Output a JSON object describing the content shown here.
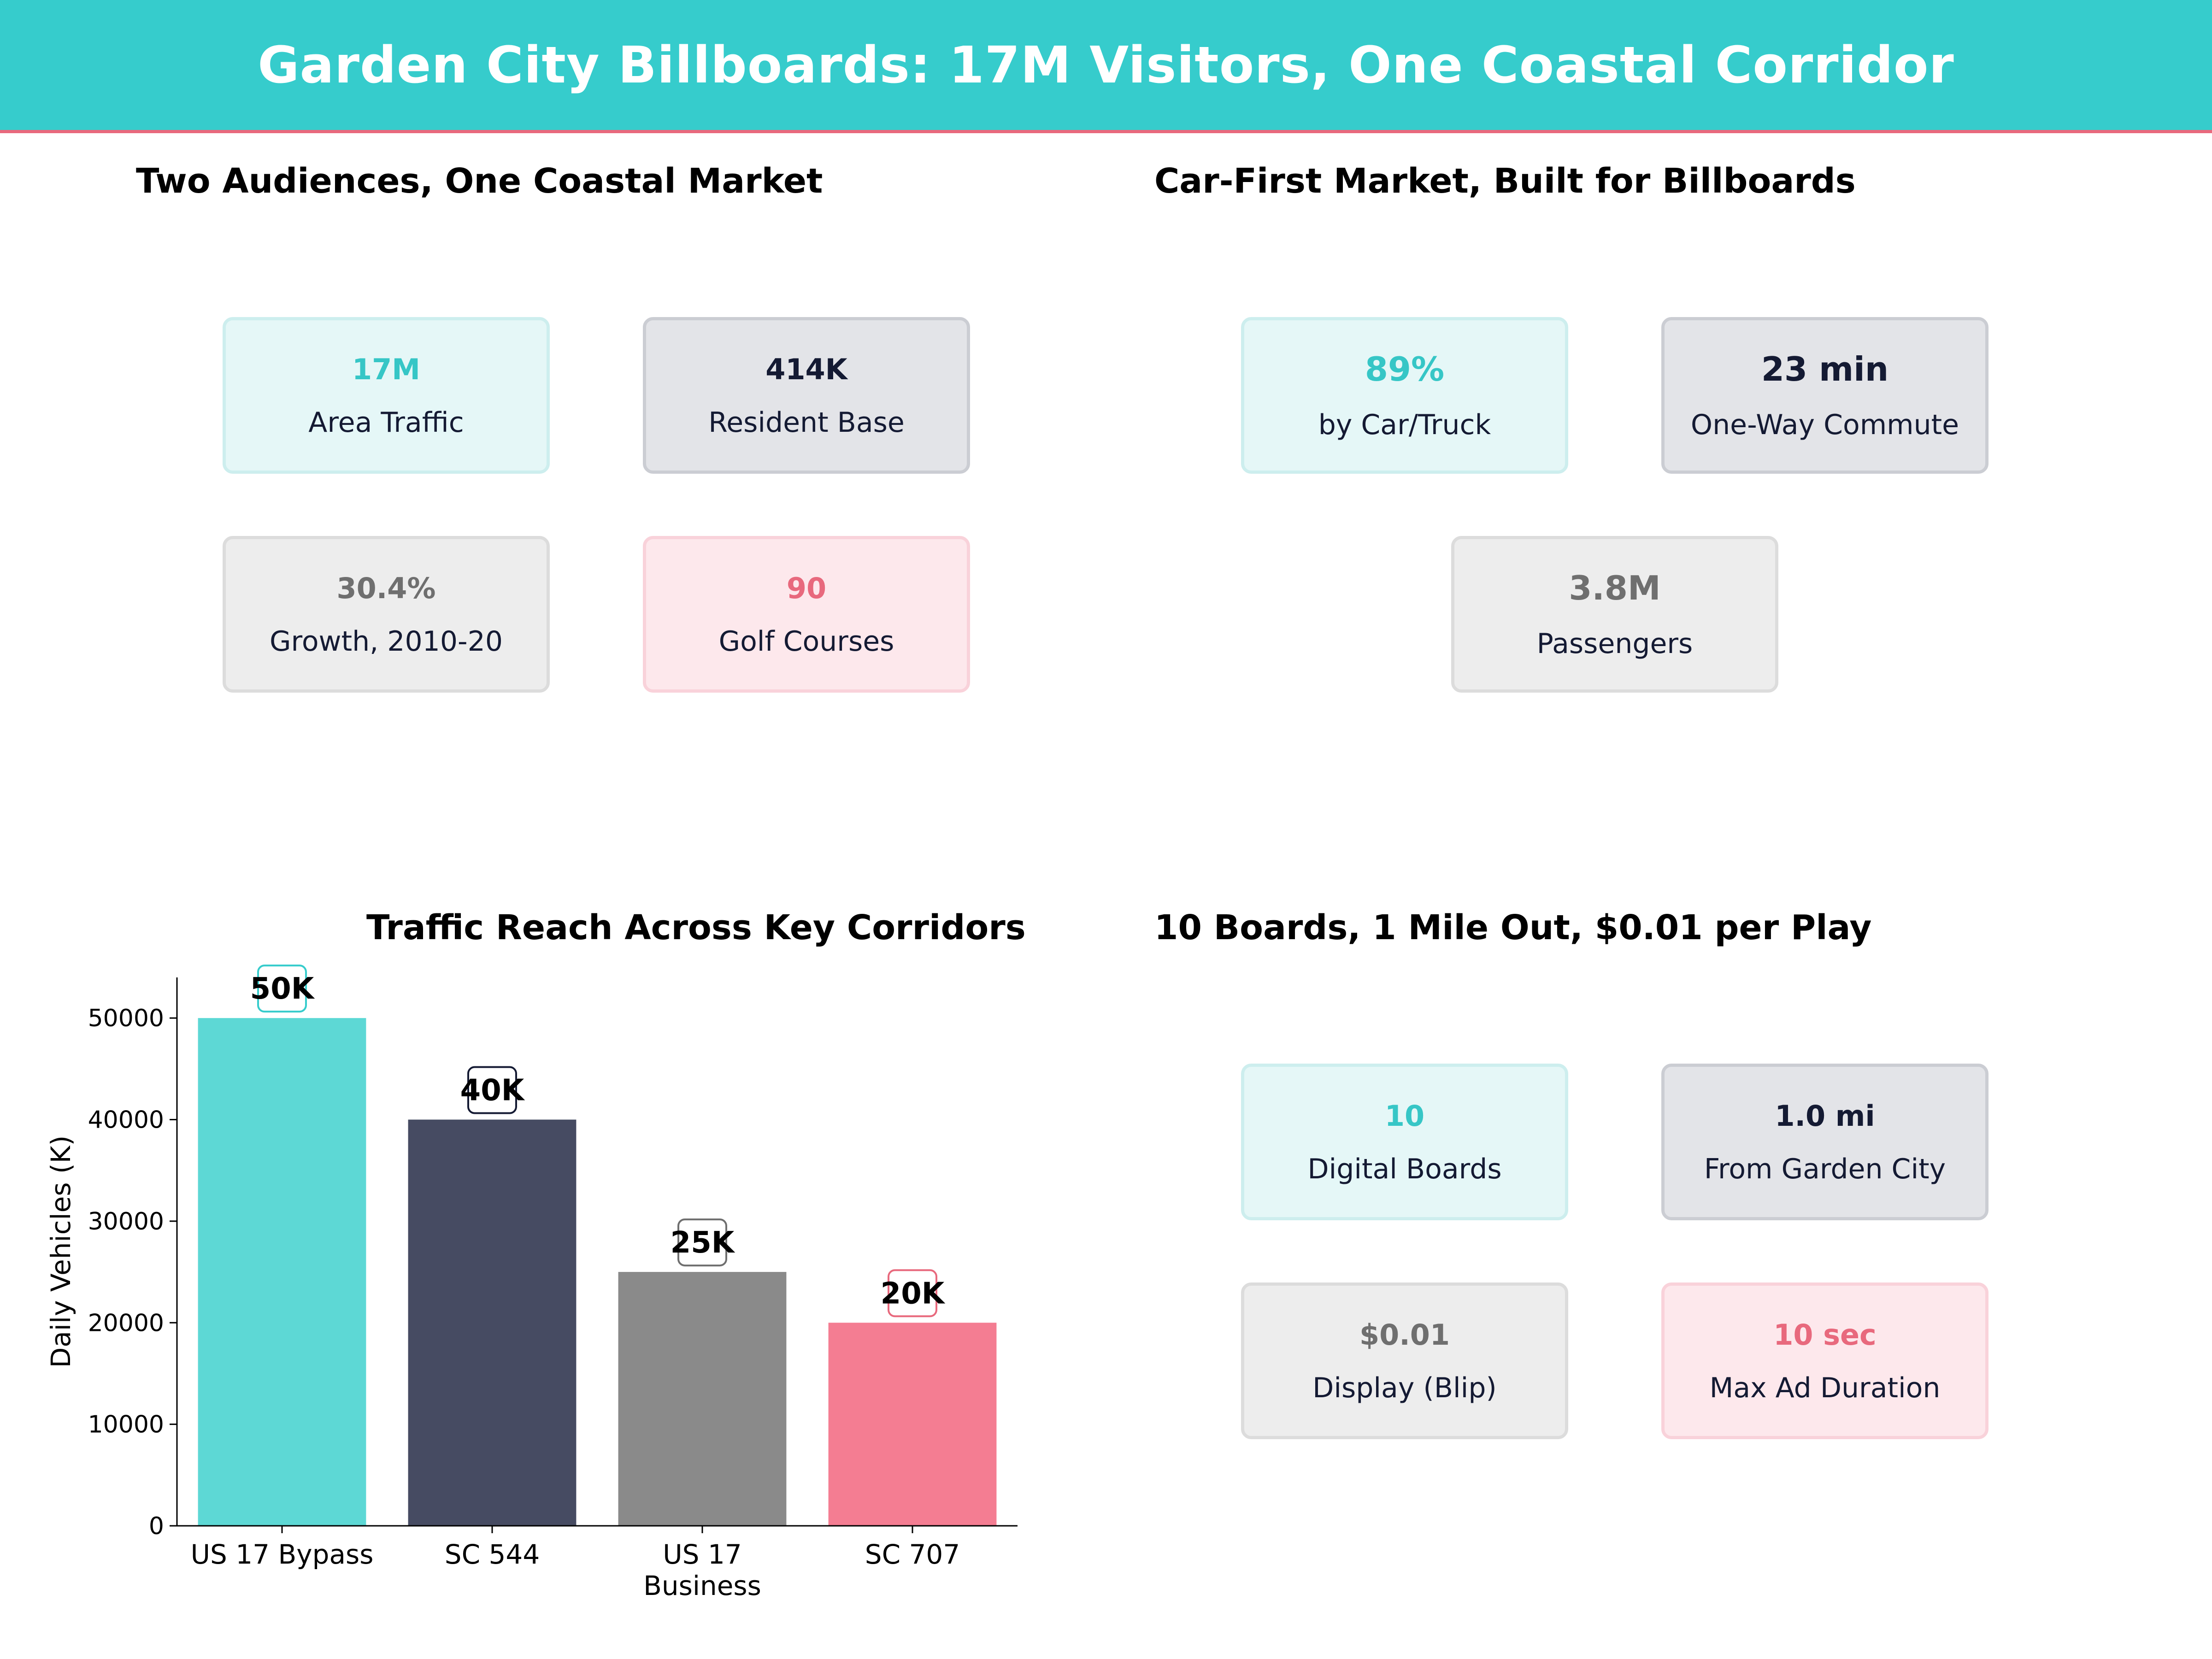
{
  "header": {
    "title": "Garden City Billboards: 17M Visitors, One Coastal Corridor"
  },
  "colors": {
    "teal": "#36cccc",
    "navy": "#464b62",
    "gray": "#8a8a8a",
    "pink": "#f47d92",
    "accent_line": "#e8697d"
  },
  "panel_audience": {
    "title": "Two Audiences, One Coastal Market",
    "cards": [
      {
        "value": "17M",
        "label": "Area Traffic",
        "style": "teal"
      },
      {
        "value": "414K",
        "label": "Resident Base",
        "style": "navy"
      },
      {
        "value": "30.4%",
        "label": "Growth, 2010-20",
        "style": "gray"
      },
      {
        "value": "90",
        "label": "Golf Courses",
        "style": "pink"
      }
    ]
  },
  "panel_market": {
    "title": "Car-First Market, Built for Billboards",
    "cards": [
      {
        "value": "89%",
        "label": "by Car/Truck",
        "style": "teal"
      },
      {
        "value": "23 min",
        "label": "One-Way Commute",
        "style": "navy"
      },
      {
        "value": "3.8M",
        "label": "Passengers",
        "style": "gray"
      }
    ]
  },
  "panel_boards": {
    "title": "10 Boards, 1 Mile Out, $0.01 per Play",
    "cards": [
      {
        "value": "10",
        "label": "Digital Boards",
        "style": "teal"
      },
      {
        "value": "1.0 mi",
        "label": "From Garden City",
        "style": "navy"
      },
      {
        "value": "$0.01",
        "label": "Display (Blip)",
        "style": "gray"
      },
      {
        "value": "10 sec",
        "label": "Max Ad Duration",
        "style": "pink"
      }
    ]
  },
  "chart_data": {
    "type": "bar",
    "title": "Traffic Reach Across Key Corridors",
    "xlabel": "",
    "ylabel": "Daily Vehicles (K)",
    "categories": [
      "US 17 Bypass",
      "SC 544",
      "US 17\nBusiness",
      "SC 707"
    ],
    "values": [
      50000,
      40000,
      25000,
      20000
    ],
    "data_labels": [
      "50K",
      "40K",
      "25K",
      "20K"
    ],
    "bar_colors": [
      "#5dd8d5",
      "#464b62",
      "#8a8a8a",
      "#f47d92"
    ],
    "label_border_colors": [
      "#36cccc",
      "#141a33",
      "#6f6f6f",
      "#e8697d"
    ],
    "yticks": [
      0,
      10000,
      20000,
      30000,
      40000,
      50000
    ],
    "ylim": [
      0,
      54000
    ],
    "grid": false,
    "legend": "none"
  }
}
